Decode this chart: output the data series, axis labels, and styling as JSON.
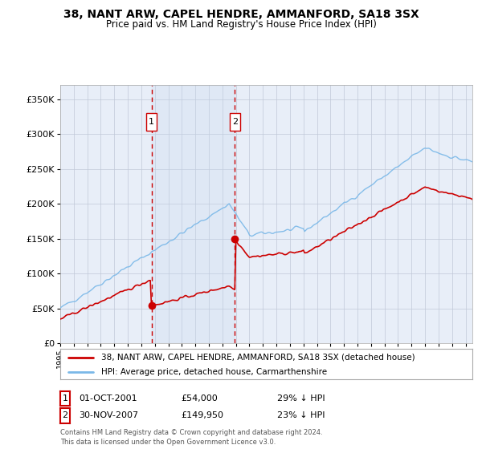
{
  "title": "38, NANT ARW, CAPEL HENDRE, AMMANFORD, SA18 3SX",
  "subtitle": "Price paid vs. HM Land Registry's House Price Index (HPI)",
  "legend_line1": "38, NANT ARW, CAPEL HENDRE, AMMANFORD, SA18 3SX (detached house)",
  "legend_line2": "HPI: Average price, detached house, Carmarthenshire",
  "sale1_date": "01-OCT-2001",
  "sale1_price": "£54,000",
  "sale1_hpi": "29% ↓ HPI",
  "sale2_date": "30-NOV-2007",
  "sale2_price": "£149,950",
  "sale2_hpi": "23% ↓ HPI",
  "footnote": "Contains HM Land Registry data © Crown copyright and database right 2024.\nThis data is licensed under the Open Government Licence v3.0.",
  "hpi_color": "#7ab8e8",
  "price_color": "#cc0000",
  "vline_color": "#cc0000",
  "background_color": "#ffffff",
  "plot_bg_color": "#e8eef8",
  "grid_color": "#c0c8d8",
  "ylim": [
    0,
    370000
  ],
  "yticks": [
    0,
    50000,
    100000,
    150000,
    200000,
    250000,
    300000,
    350000
  ],
  "sale1_x": 2001.75,
  "sale1_y": 54000,
  "sale2_x": 2007.92,
  "sale2_y": 149950,
  "xmin": 1995.0,
  "xmax": 2025.5
}
